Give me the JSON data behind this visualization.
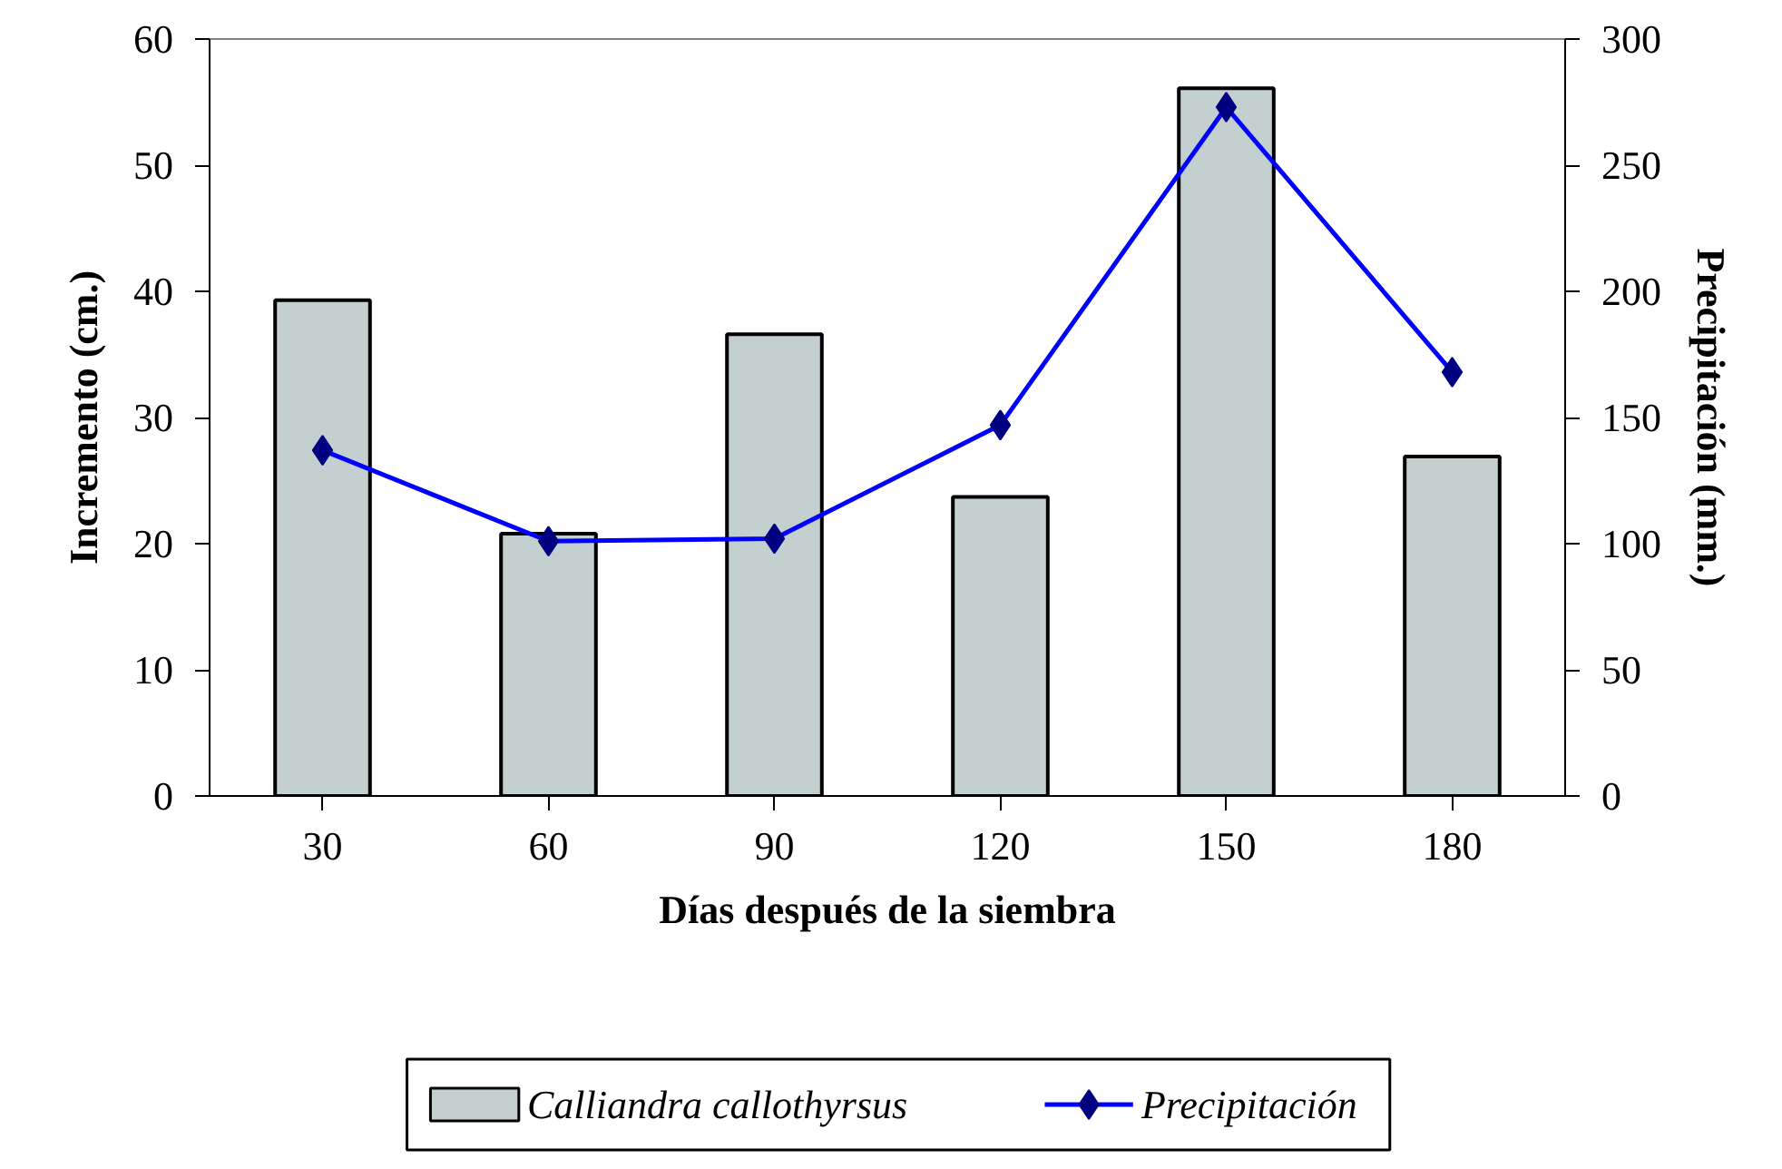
{
  "chart_data": {
    "type": "bar",
    "xlabel": "Días después de la siembra",
    "ylabel": "Incremento (cm.)",
    "y2label": "Precipitación (mm.)",
    "categories": [
      "30",
      "60",
      "90",
      "120",
      "150",
      "180"
    ],
    "series": [
      {
        "name": "Calliandra callothyrsus",
        "color": "#c4d0d0",
        "values": [
          39.3,
          20.8,
          36.6,
          23.7,
          56.1,
          26.9
        ]
      },
      {
        "name": "Precipitación",
        "type": "line",
        "axis": "y2",
        "color": "#0000ff",
        "marker": "diamond",
        "values": [
          137,
          101,
          102,
          147,
          273,
          168
        ]
      }
    ],
    "ylim": [
      0,
      60
    ],
    "yticks": [
      0,
      10,
      20,
      30,
      40,
      50,
      60
    ],
    "y2lim": [
      0,
      300
    ],
    "y2ticks": [
      0,
      50,
      100,
      150,
      200,
      250,
      300
    ],
    "grid": false,
    "legend": "bottom"
  }
}
